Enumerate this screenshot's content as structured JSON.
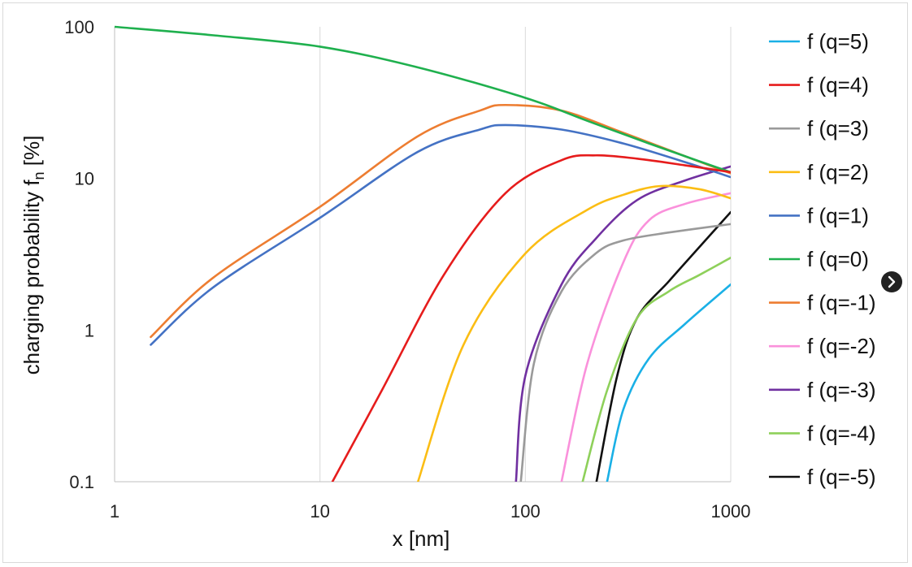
{
  "chart_data": {
    "type": "line",
    "xscale": "log",
    "yscale": "log",
    "xlim": [
      1,
      1000
    ],
    "ylim": [
      0.1,
      100
    ],
    "xlabel": "x [nm]",
    "ylabel_main": "charging probability f",
    "ylabel_sub": "n",
    "ylabel_unit": " [%]",
    "xticks": [
      {
        "value": 1,
        "label": "1"
      },
      {
        "value": 10,
        "label": "10"
      },
      {
        "value": 100,
        "label": "100"
      },
      {
        "value": 1000,
        "label": "1000"
      }
    ],
    "yticks": [
      {
        "value": 0.1,
        "label": "0.1"
      },
      {
        "value": 1,
        "label": "1"
      },
      {
        "value": 10,
        "label": "10"
      },
      {
        "value": 100,
        "label": "100"
      }
    ],
    "grid": {
      "vertical": true,
      "horizontal": false
    },
    "legend_position": "right",
    "series": [
      {
        "name": "f (q=5)",
        "color": "#1ab0e6",
        "points": [
          [
            250,
            0.1
          ],
          [
            300,
            0.3
          ],
          [
            400,
            0.65
          ],
          [
            600,
            1.1
          ],
          [
            1000,
            2.0
          ]
        ]
      },
      {
        "name": "f (q=4)",
        "color": "#e61c1c",
        "points": [
          [
            11.5,
            0.1
          ],
          [
            20,
            0.4
          ],
          [
            40,
            2.3
          ],
          [
            80,
            8
          ],
          [
            150,
            13.2
          ],
          [
            220,
            14.2
          ],
          [
            350,
            13.5
          ],
          [
            600,
            12.2
          ],
          [
            1000,
            11
          ]
        ]
      },
      {
        "name": "f (q=3)",
        "color": "#9a9a9a",
        "points": [
          [
            95,
            0.1
          ],
          [
            110,
            0.6
          ],
          [
            150,
            1.8
          ],
          [
            220,
            3.2
          ],
          [
            300,
            3.9
          ],
          [
            500,
            4.4
          ],
          [
            1000,
            5.0
          ]
        ]
      },
      {
        "name": "f (q=2)",
        "color": "#fbbd14",
        "points": [
          [
            30,
            0.1
          ],
          [
            50,
            0.8
          ],
          [
            100,
            3.2
          ],
          [
            200,
            6.2
          ],
          [
            300,
            7.8
          ],
          [
            450,
            8.9
          ],
          [
            700,
            8.5
          ],
          [
            1000,
            7.4
          ]
        ]
      },
      {
        "name": "f (q=1)",
        "color": "#4472c4",
        "points": [
          [
            1.5,
            0.8
          ],
          [
            3,
            1.9
          ],
          [
            10,
            5.5
          ],
          [
            30,
            15
          ],
          [
            60,
            21
          ],
          [
            80,
            22.5
          ],
          [
            150,
            21
          ],
          [
            300,
            17
          ],
          [
            600,
            12.8
          ],
          [
            1000,
            10.2
          ]
        ]
      },
      {
        "name": "f (q=0)",
        "color": "#1fb04e",
        "points": [
          [
            1,
            100
          ],
          [
            3,
            88
          ],
          [
            10,
            74
          ],
          [
            30,
            54
          ],
          [
            100,
            34
          ],
          [
            200,
            24
          ],
          [
            400,
            17
          ],
          [
            700,
            13
          ],
          [
            1000,
            11
          ]
        ]
      },
      {
        "name": "f (q=-1)",
        "color": "#ed7d31",
        "points": [
          [
            1.5,
            0.9
          ],
          [
            3,
            2.2
          ],
          [
            10,
            6.5
          ],
          [
            30,
            19
          ],
          [
            60,
            28
          ],
          [
            80,
            30.5
          ],
          [
            150,
            28
          ],
          [
            300,
            20
          ],
          [
            600,
            14
          ],
          [
            1000,
            10.8
          ]
        ]
      },
      {
        "name": "f (q=-2)",
        "color": "#fa91db",
        "points": [
          [
            150,
            0.1
          ],
          [
            200,
            0.6
          ],
          [
            300,
            2.8
          ],
          [
            400,
            5.3
          ],
          [
            600,
            6.8
          ],
          [
            1000,
            8.0
          ]
        ]
      },
      {
        "name": "f (q=-3)",
        "color": "#7030a0",
        "points": [
          [
            90,
            0.1
          ],
          [
            100,
            0.5
          ],
          [
            150,
            2.0
          ],
          [
            220,
            4.0
          ],
          [
            350,
            7.2
          ],
          [
            600,
            9.7
          ],
          [
            1000,
            12.0
          ]
        ]
      },
      {
        "name": "f (q=-4)",
        "color": "#8ed05a",
        "points": [
          [
            190,
            0.1
          ],
          [
            250,
            0.4
          ],
          [
            350,
            1.2
          ],
          [
            500,
            1.8
          ],
          [
            700,
            2.3
          ],
          [
            1000,
            3.0
          ]
        ]
      },
      {
        "name": "f (q=-5)",
        "color": "#111111",
        "points": [
          [
            222,
            0.1
          ],
          [
            280,
            0.5
          ],
          [
            350,
            1.2
          ],
          [
            500,
            2.1
          ],
          [
            700,
            3.5
          ],
          [
            1000,
            6.0
          ]
        ]
      }
    ]
  }
}
